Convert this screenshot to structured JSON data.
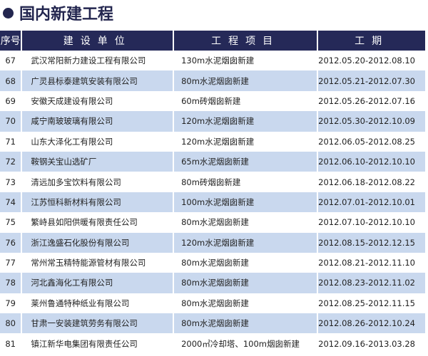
{
  "title": "国内新建工程",
  "colors": {
    "header_bg": "#252958",
    "alt_row": "#c9d8ee",
    "title": "#23264f"
  },
  "headers": [
    "序号",
    "建设单位",
    "工程项目",
    "工期"
  ],
  "rows": [
    [
      "67",
      "武汉常阳新力建设工程有限公司",
      "130m水泥烟囱新建",
      "2012.05.20-2012.08.10"
    ],
    [
      "68",
      "广灵县标泰建筑安装有限公司",
      "80m水泥烟囱新建",
      "2012.05.21-2012.07.30"
    ],
    [
      "69",
      "安徽天成建设有限公司",
      "60m砖烟囱新建",
      "2012.05.26-2012.07.16"
    ],
    [
      "70",
      "咸宁南玻玻璃有限公司",
      "120m水泥烟囱新建",
      "2012.05.30-2012.10.09"
    ],
    [
      "71",
      "山东大泽化工有限公司",
      "120m水泥烟囱新建",
      "2012.06.05-2012.08.25"
    ],
    [
      "72",
      "鞍钢关宝山选矿厂",
      "65m水泥烟囱新建",
      "2012.06.10-2012.10.10"
    ],
    [
      "73",
      "清远加多宝饮料有限公司",
      "80m砖烟囱新建",
      "2012.06.18-2012.08.22"
    ],
    [
      "74",
      "江苏恒科新材料有限公司",
      "100m水泥烟囱新建",
      "2012.07.01-2012.10.01"
    ],
    [
      "75",
      "繁峙县如阳供暖有限责任公司",
      "80m水泥烟囱新建",
      "2012.07.10-2012.10.10"
    ],
    [
      "76",
      "浙江逸盛石化股份有限公司",
      "120m水泥烟囱新建",
      "2012.08.15-2012.12.15"
    ],
    [
      "77",
      "常州常玉精特能源管材有限公司",
      "80m水泥烟囱新建",
      "2012.08.21-2012.11.10"
    ],
    [
      "78",
      "河北鑫海化工有限公司",
      "80m水泥烟囱新建",
      "2012.08.23-2012.11.02"
    ],
    [
      "79",
      "莱州鲁通特种纸业有限公司",
      "80m水泥烟囱新建",
      "2012.08.25-2012.11.15"
    ],
    [
      "80",
      "甘肃一安装建筑劳务有限公司",
      "80m水泥烟囱新建",
      "2012.08.26-2012.10.24"
    ],
    [
      "81",
      "镇江新华电集团有限责任公司",
      "2000㎡冷却塔、100m烟囱新建",
      "2012.09.16-2013.03.28"
    ]
  ]
}
